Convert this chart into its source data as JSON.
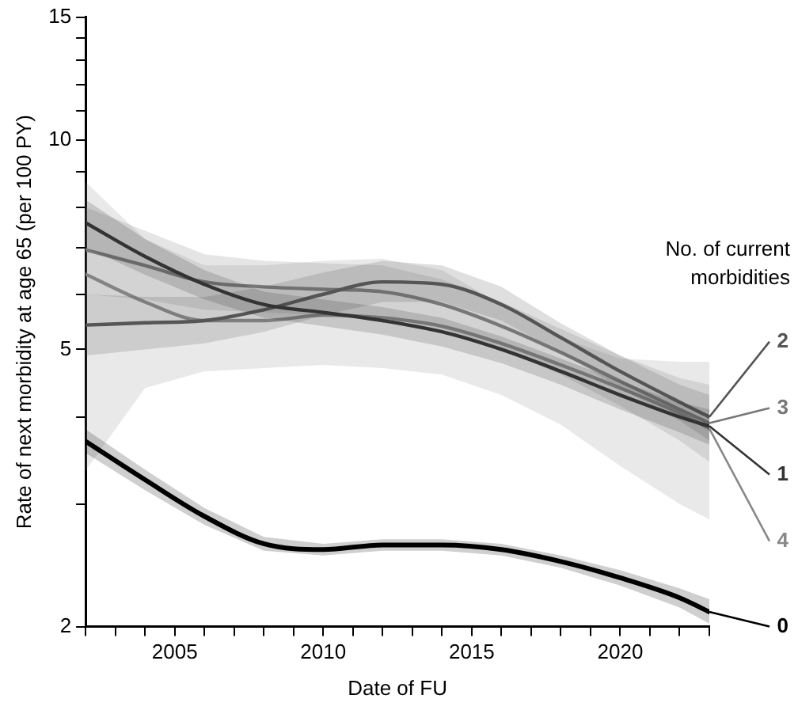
{
  "chart_data": {
    "type": "line",
    "xlabel": "Date of FU",
    "ylabel": "Rate of next morbidity at age 65 (per 100 PY)",
    "legend_title": "No. of current morbidities",
    "log": "y",
    "x": [
      2002,
      2004,
      2006,
      2008,
      2010,
      2012,
      2014,
      2016,
      2018,
      2020,
      2022,
      2023
    ],
    "xlim": [
      2002,
      2023
    ],
    "xticks": [
      {
        "value": 2002,
        "label": null
      },
      {
        "value": 2003,
        "label": null
      },
      {
        "value": 2004,
        "label": null
      },
      2005,
      {
        "value": 2006,
        "label": null
      },
      {
        "value": 2007,
        "label": null
      },
      {
        "value": 2008,
        "label": null
      },
      {
        "value": 2009,
        "label": null
      },
      2010,
      {
        "value": 2011,
        "label": null
      },
      {
        "value": 2012,
        "label": null
      },
      {
        "value": 2013,
        "label": null
      },
      {
        "value": 2014,
        "label": null
      },
      2015,
      {
        "value": 2016,
        "label": null
      },
      {
        "value": 2017,
        "label": null
      },
      {
        "value": 2018,
        "label": null
      },
      {
        "value": 2019,
        "label": null
      },
      2020,
      {
        "value": 2021,
        "label": null
      },
      {
        "value": 2022,
        "label": null
      },
      {
        "value": 2023,
        "label": null
      }
    ],
    "ylim": [
      2,
      15
    ],
    "yticks": [
      2,
      {
        "value": 3,
        "label": null
      },
      {
        "value": 4,
        "label": null
      },
      5,
      {
        "value": 6,
        "label": null
      },
      {
        "value": 7,
        "label": null
      },
      {
        "value": 8,
        "label": null
      },
      {
        "value": 9,
        "label": null
      },
      10,
      {
        "value": 11,
        "label": null
      },
      {
        "value": 12,
        "label": null
      },
      {
        "value": 13,
        "label": null
      },
      {
        "value": 14,
        "label": null
      },
      15
    ],
    "grid": false,
    "marker": "none",
    "line_style": "solid",
    "legend": "right",
    "series": [
      {
        "name": "0",
        "color": "#000000",
        "values": [
          3.69,
          3.25,
          2.88,
          2.63,
          2.58,
          2.62,
          2.62,
          2.58,
          2.48,
          2.35,
          2.2,
          2.1
        ],
        "lower": [
          3.55,
          3.14,
          2.8,
          2.57,
          2.53,
          2.57,
          2.57,
          2.53,
          2.43,
          2.29,
          2.13,
          2.02
        ],
        "upper": [
          3.84,
          3.36,
          2.96,
          2.69,
          2.63,
          2.67,
          2.67,
          2.63,
          2.53,
          2.41,
          2.27,
          2.19
        ]
      },
      {
        "name": "1",
        "color": "#333333",
        "values": [
          7.6,
          6.8,
          6.2,
          5.8,
          5.65,
          5.5,
          5.3,
          5.0,
          4.65,
          4.3,
          4.0,
          3.88
        ],
        "lower": [
          7.0,
          6.4,
          5.9,
          5.55,
          5.4,
          5.25,
          5.05,
          4.78,
          4.45,
          4.1,
          3.8,
          3.65
        ],
        "upper": [
          8.2,
          7.2,
          6.5,
          6.05,
          5.9,
          5.75,
          5.55,
          5.22,
          4.85,
          4.5,
          4.2,
          4.1
        ]
      },
      {
        "name": "2",
        "color": "#555555",
        "values": [
          5.42,
          5.46,
          5.5,
          5.7,
          6.0,
          6.25,
          6.2,
          5.8,
          5.2,
          4.65,
          4.2,
          4.0
        ],
        "lower": [
          4.9,
          5.0,
          5.1,
          5.3,
          5.6,
          5.85,
          5.85,
          5.5,
          4.95,
          4.4,
          3.95,
          3.7
        ],
        "upper": [
          6.0,
          5.95,
          5.95,
          6.15,
          6.45,
          6.7,
          6.6,
          6.15,
          5.45,
          4.9,
          4.45,
          4.3
        ]
      },
      {
        "name": "3",
        "color": "#777777",
        "values": [
          6.95,
          6.6,
          6.25,
          6.15,
          6.1,
          6.05,
          5.8,
          5.4,
          4.95,
          4.5,
          4.1,
          3.92
        ],
        "lower": [
          6.0,
          5.9,
          5.7,
          5.65,
          5.6,
          5.55,
          5.35,
          5.0,
          4.6,
          4.15,
          3.7,
          3.45
        ],
        "upper": [
          8.0,
          7.4,
          6.85,
          6.7,
          6.65,
          6.6,
          6.3,
          5.85,
          5.35,
          4.9,
          4.55,
          4.45
        ]
      },
      {
        "name": "4",
        "color": "#888888",
        "values": [
          6.41,
          5.85,
          5.5,
          5.5,
          5.6,
          5.55,
          5.4,
          5.1,
          4.75,
          4.4,
          4.05,
          3.85
        ],
        "lower": [
          3.35,
          4.4,
          4.65,
          4.7,
          4.75,
          4.7,
          4.6,
          4.3,
          3.9,
          3.4,
          3.0,
          2.85
        ],
        "upper": [
          8.7,
          7.2,
          6.6,
          6.6,
          6.7,
          6.75,
          6.5,
          5.8,
          5.2,
          4.85,
          4.8,
          4.8
        ]
      }
    ]
  }
}
